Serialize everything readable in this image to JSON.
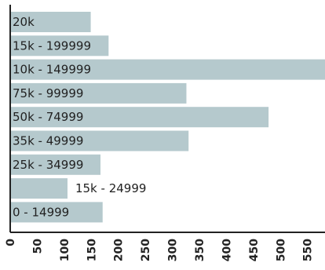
{
  "chart_data": {
    "type": "bar",
    "orientation": "horizontal",
    "categories": [
      "20k",
      "15k - 199999",
      "10k - 149999",
      "75k - 99999",
      "50k - 74999",
      "35k - 49999",
      "25k - 34999",
      "15k - 24999",
      "0 - 14999"
    ],
    "values": [
      149,
      182,
      591,
      326,
      478,
      330,
      167,
      106,
      171
    ],
    "xlim": [
      0,
      581
    ],
    "xticks": [
      "0",
      "50",
      "100",
      "150",
      "200",
      "250",
      "300",
      "350",
      "400",
      "450",
      "500",
      "550"
    ],
    "bar_color": "#b5c9cd",
    "axis_color": "#222222",
    "title": "",
    "xlabel": "",
    "ylabel": ""
  }
}
